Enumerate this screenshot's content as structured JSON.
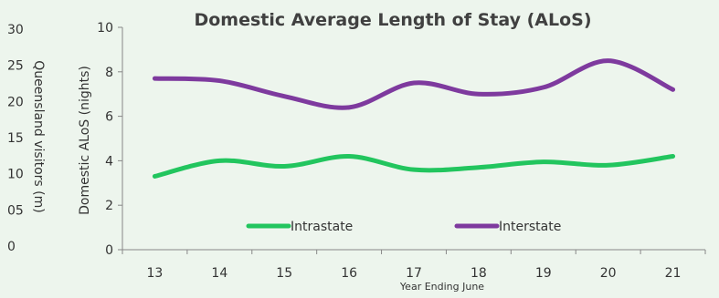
{
  "chart_data": {
    "type": "line",
    "title": "Domestic Average Length of Stay (ALoS)",
    "xlabel": "Year Ending June",
    "ylabel": "Domestic ALoS (nights)",
    "ylim": [
      0,
      10
    ],
    "yticks": [
      "0",
      "2",
      "4",
      "6",
      "8",
      "10"
    ],
    "secondary_ylabel": "Queensland visitors (m)",
    "secondary_yticks": [
      "0",
      "05",
      "10",
      "15",
      "20",
      "25",
      "30"
    ],
    "categories": [
      "13",
      "14",
      "15",
      "16",
      "17",
      "18",
      "19",
      "20",
      "21"
    ],
    "series": [
      {
        "name": "Intrastate",
        "color": "#22c55e",
        "values": [
          3.3,
          4.0,
          3.75,
          4.2,
          3.6,
          3.7,
          3.95,
          3.8,
          4.2
        ]
      },
      {
        "name": "Interstate",
        "color": "#7e3a9e",
        "values": [
          7.7,
          7.6,
          6.9,
          6.4,
          7.5,
          7.0,
          7.3,
          8.5,
          7.2
        ]
      }
    ],
    "legend_position": "bottom-inside",
    "background": "#edf5ed"
  }
}
